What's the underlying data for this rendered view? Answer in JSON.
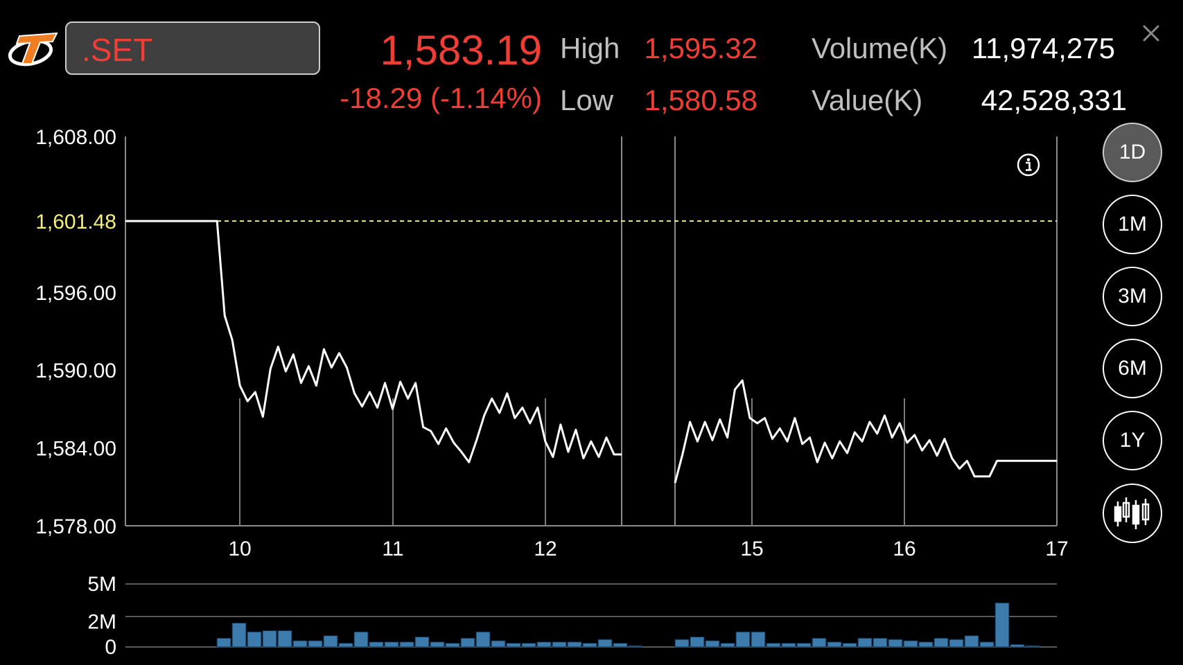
{
  "header": {
    "symbol": ".SET",
    "last_price": "1,583.19",
    "change": "-18.29 (-1.14%)",
    "high_label": "High",
    "high_value": "1,595.32",
    "low_label": "Low",
    "low_value": "1,580.58",
    "volume_label": "Volume(K)",
    "volume_value": "11,974,275",
    "value_label": "Value(K)",
    "value_value": "42,528,331"
  },
  "periods": [
    {
      "label": "1D",
      "active": true
    },
    {
      "label": "1M",
      "active": false
    },
    {
      "label": "3M",
      "active": false
    },
    {
      "label": "6M",
      "active": false
    },
    {
      "label": "1Y",
      "active": false
    }
  ],
  "icons": {
    "logo": "brand-logo-icon",
    "close": "close-icon",
    "info": "info-icon",
    "candlestick": "candlestick-icon"
  },
  "colors": {
    "price_red": "#ef3e36",
    "reference_yellow": "#f5f07a",
    "volume_blue": "#3c7bab"
  },
  "chart_data": {
    "type": "line",
    "y_tick_labels": [
      "1,608.00",
      "1,596.00",
      "1,590.00",
      "1,584.00",
      "1,578.00"
    ],
    "reference_label": "1,601.48",
    "reference_value": 1601.48,
    "ylim": [
      1578,
      1608
    ],
    "x_tick_labels": [
      "10",
      "11",
      "12",
      "15",
      "16",
      "17"
    ],
    "grid": true,
    "series": [
      {
        "segment": 1,
        "values": [
          1601.48,
          1601.48,
          1601.48,
          1601.48,
          1601.48,
          1601.48,
          1601.48,
          1601.48,
          1601.48,
          1601.48,
          1601.48,
          1601.48,
          1601.48,
          1594.2,
          1592.3,
          1588.8,
          1587.6,
          1588.3,
          1586.4,
          1590.1,
          1591.8,
          1589.9,
          1591.2,
          1589.0,
          1590.3,
          1588.8,
          1591.6,
          1590.2,
          1591.3,
          1590.2,
          1588.2,
          1587.2,
          1588.3,
          1587.1,
          1589.0,
          1587.0,
          1589.1,
          1587.8,
          1589.0,
          1585.6,
          1585.3,
          1584.3,
          1585.5,
          1584.4,
          1583.7,
          1582.9,
          1584.6,
          1586.5,
          1587.8,
          1586.7,
          1588.2,
          1586.3,
          1587.1,
          1585.9,
          1587.1,
          1584.5,
          1583.3,
          1585.8,
          1583.7,
          1585.4,
          1583.2,
          1584.5,
          1583.3,
          1584.8,
          1583.5,
          1583.5
        ]
      },
      {
        "segment": 2,
        "values": [
          1581.3,
          1583.5,
          1586.0,
          1584.5,
          1586.0,
          1584.6,
          1586.2,
          1584.8,
          1588.5,
          1589.2,
          1586.3,
          1585.9,
          1586.3,
          1584.7,
          1585.5,
          1584.5,
          1586.3,
          1584.3,
          1584.8,
          1582.9,
          1584.4,
          1583.2,
          1584.5,
          1583.6,
          1585.2,
          1584.5,
          1586.0,
          1585.1,
          1586.5,
          1584.8,
          1585.9,
          1584.4,
          1585.0,
          1583.8,
          1584.6,
          1583.4,
          1584.7,
          1583.2,
          1582.4,
          1583.0,
          1581.8,
          1581.8,
          1581.8,
          1583.0,
          1583.0,
          1583.0,
          1583.0,
          1583.0,
          1583.0,
          1583.0,
          1583.0,
          1583.0
        ]
      }
    ],
    "volume": {
      "y_tick_labels": [
        "5M",
        "2M",
        "0"
      ],
      "ylim": [
        0,
        5
      ],
      "segment1": [
        0.7,
        1.9,
        1.2,
        1.3,
        1.3,
        0.5,
        0.5,
        0.9,
        0.3,
        1.2,
        0.4,
        0.4,
        0.4,
        0.8,
        0.4,
        0.3,
        0.7,
        1.2,
        0.5,
        0.3,
        0.3,
        0.4,
        0.4,
        0.4,
        0.3,
        0.6,
        0.3,
        0.1
      ],
      "segment2": [
        0.6,
        0.8,
        0.5,
        0.3,
        1.2,
        1.2,
        0.3,
        0.3,
        0.3,
        0.7,
        0.4,
        0.3,
        0.7,
        0.7,
        0.6,
        0.5,
        0.4,
        0.7,
        0.6,
        0.9,
        0.4,
        3.5,
        0.2,
        0.1
      ]
    }
  }
}
